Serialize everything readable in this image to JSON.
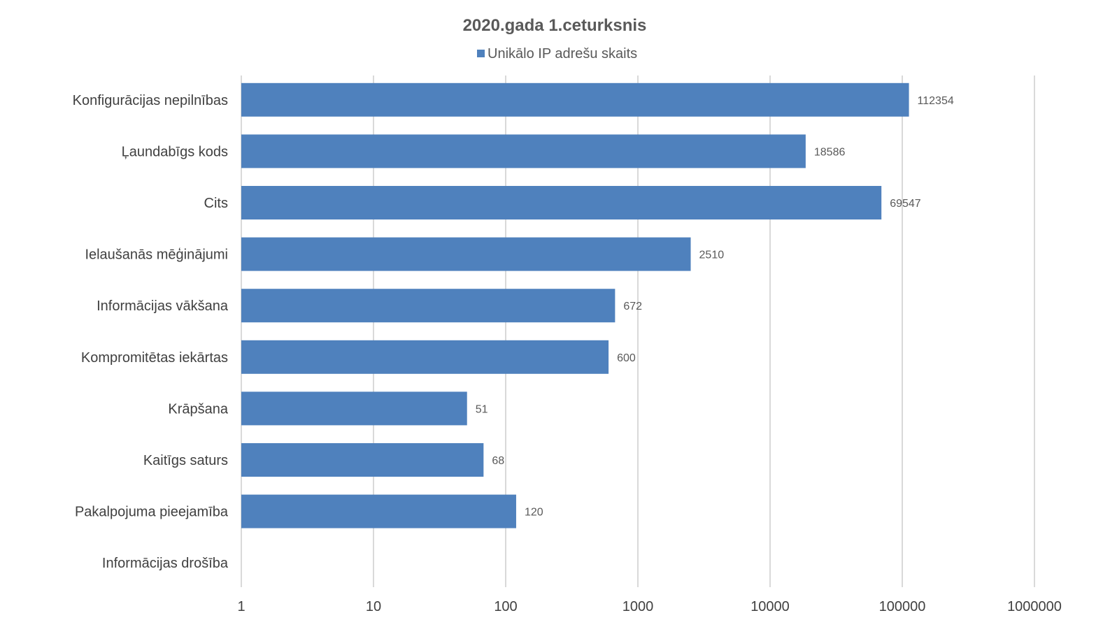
{
  "chart_data": {
    "type": "bar",
    "orientation": "horizontal",
    "title": "2020.gada 1.ceturksnis",
    "xscale": "log",
    "xlim": [
      1,
      1000000
    ],
    "xticks": [
      "1",
      "10",
      "100",
      "1000",
      "10000",
      "100000",
      "1000000"
    ],
    "xtick_values": [
      1,
      10,
      100,
      1000,
      10000,
      100000,
      1000000
    ],
    "grid": true,
    "legend_position": "top",
    "categories": [
      "Konfigurācijas nepilnības",
      "Ļaundabīgs kods",
      "Cits",
      "Ielaušanās mēģinājumi",
      "Informācijas vākšana",
      "Kompromitētas iekārtas",
      "Krāpšana",
      "Kaitīgs saturs",
      "Pakalpojuma pieejamība",
      "Informācijas drošība"
    ],
    "series": [
      {
        "name": "Unikālo IP adrešu skaits",
        "color": "#4f81bd",
        "values": [
          112354,
          18586,
          69547,
          2510,
          672,
          600,
          51,
          68,
          120,
          null
        ],
        "labels": [
          "112354",
          "18586",
          "69547",
          "2510",
          "672",
          "600",
          "51",
          "68",
          "120",
          ""
        ]
      }
    ]
  }
}
